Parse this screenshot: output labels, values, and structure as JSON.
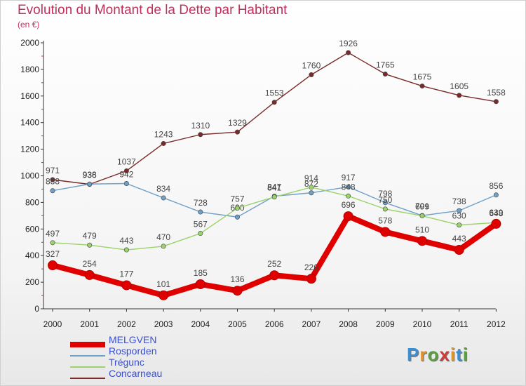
{
  "title": "Evolution du Montant de la Dette par Habitant",
  "subtitle": "(en €)",
  "logo": {
    "text": "Proxiti",
    "colors": [
      "#3a8fd0",
      "#e0932a",
      "#5aa040",
      "#d03a3a",
      "#e0932a",
      "#3a8fd0",
      "#5aa040"
    ]
  },
  "chart_data": {
    "type": "line",
    "title": "Evolution du Montant de la Dette par Habitant",
    "ylabel": "(en €)",
    "x": [
      "2000",
      "2001",
      "2002",
      "2003",
      "2004",
      "2005",
      "2006",
      "2007",
      "2008",
      "2009",
      "2010",
      "2011",
      "2012"
    ],
    "ylim": [
      0,
      2000
    ],
    "yticks": [
      "0",
      "200",
      "400",
      "600",
      "800",
      "1000",
      "1200",
      "1400",
      "1600",
      "1800",
      "2000"
    ],
    "grid": false,
    "legend_position": "bottom-left",
    "series": [
      {
        "name": "Concarneau",
        "color": "#7a2a2a",
        "values": [
          971,
          936,
          1037,
          1243,
          1310,
          1329,
          1553,
          1760,
          1926,
          1765,
          1675,
          1605,
          1558
        ]
      },
      {
        "name": "Rosporden",
        "color": "#6fa0c8",
        "values": [
          888,
          938,
          942,
          834,
          728,
          690,
          847,
          872,
          917,
          798,
          701,
          738,
          856
        ]
      },
      {
        "name": "Trégunc",
        "color": "#9ad36a",
        "values": [
          497,
          479,
          443,
          470,
          567,
          757,
          841,
          914,
          848,
          750,
          699,
          630,
          648
        ]
      },
      {
        "name": "MELGVEN",
        "color": "#e00000",
        "values": [
          327,
          254,
          177,
          101,
          185,
          136,
          252,
          226,
          696,
          578,
          510,
          443,
          639
        ]
      }
    ]
  },
  "legend": [
    {
      "label": "MELGVEN",
      "color": "#e00000",
      "text_color": "#3a4fd0"
    },
    {
      "label": "Rosporden",
      "color": "#6fa0c8",
      "text_color": "#3a4fd0"
    },
    {
      "label": "Trégunc",
      "color": "#9ad36a",
      "text_color": "#3a4fd0"
    },
    {
      "label": "Concarneau",
      "color": "#7a2a2a",
      "text_color": "#3a4fd0"
    }
  ]
}
